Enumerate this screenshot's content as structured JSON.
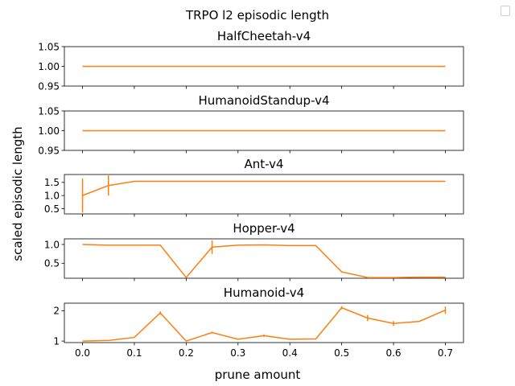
{
  "figure": {
    "suptitle": "TRPO l2 episodic length",
    "ylabel": "scaled episodic length",
    "xlabel": "prune amount",
    "line_color": "#ff7f0e",
    "err_color": "#ff7f0e",
    "legend": "empty legend box at top-right"
  },
  "chart_data": [
    {
      "type": "line",
      "title": "HalfCheetah-v4",
      "x": [
        0.0,
        0.05,
        0.1,
        0.15,
        0.2,
        0.25,
        0.3,
        0.35,
        0.4,
        0.45,
        0.5,
        0.55,
        0.6,
        0.65,
        0.7
      ],
      "series": [
        {
          "values": [
            1,
            1,
            1,
            1,
            1,
            1,
            1,
            1,
            1,
            1,
            1,
            1,
            1,
            1,
            1
          ],
          "err": [
            0,
            0,
            0,
            0,
            0,
            0,
            0,
            0,
            0,
            0,
            0,
            0,
            0,
            0,
            0
          ]
        }
      ],
      "ylim": [
        0.95,
        1.05
      ],
      "yticks": [
        0.95,
        1.0,
        1.05
      ],
      "ytick_labels": [
        "0.95",
        "1.00",
        "1.05"
      ],
      "xlim": [
        -0.035,
        0.735
      ]
    },
    {
      "type": "line",
      "title": "HumanoidStandup-v4",
      "x": [
        0.0,
        0.05,
        0.1,
        0.15,
        0.2,
        0.25,
        0.3,
        0.35,
        0.4,
        0.45,
        0.5,
        0.55,
        0.6,
        0.65,
        0.7
      ],
      "series": [
        {
          "values": [
            1,
            1,
            1,
            1,
            1,
            1,
            1,
            1,
            1,
            1,
            1,
            1,
            1,
            1,
            1
          ],
          "err": [
            0,
            0,
            0,
            0,
            0,
            0,
            0,
            0,
            0,
            0,
            0,
            0,
            0,
            0,
            0
          ]
        }
      ],
      "ylim": [
        0.95,
        1.05
      ],
      "yticks": [
        0.95,
        1.0,
        1.05
      ],
      "ytick_labels": [
        "0.95",
        "1.00",
        "1.05"
      ],
      "xlim": [
        -0.035,
        0.735
      ]
    },
    {
      "type": "line",
      "title": "Ant-v4",
      "x": [
        0.0,
        0.05,
        0.1,
        0.15,
        0.2,
        0.25,
        0.3,
        0.35,
        0.4,
        0.45,
        0.5,
        0.55,
        0.6,
        0.65,
        0.7
      ],
      "series": [
        {
          "values": [
            1.0,
            1.38,
            1.54,
            1.54,
            1.54,
            1.54,
            1.54,
            1.54,
            1.54,
            1.54,
            1.54,
            1.54,
            1.54,
            1.54,
            1.54
          ],
          "err": [
            0.65,
            0.38,
            0,
            0,
            0,
            0,
            0,
            0,
            0,
            0,
            0,
            0,
            0,
            0,
            0
          ]
        }
      ],
      "ylim": [
        0.3,
        1.8
      ],
      "yticks": [
        0.5,
        1.0,
        1.5
      ],
      "ytick_labels": [
        "0.5",
        "1.0",
        "1.5"
      ],
      "xlim": [
        -0.035,
        0.735
      ]
    },
    {
      "type": "line",
      "title": "Hopper-v4",
      "x": [
        0.0,
        0.05,
        0.1,
        0.15,
        0.2,
        0.25,
        0.3,
        0.35,
        0.4,
        0.45,
        0.5,
        0.55,
        0.6,
        0.65,
        0.7
      ],
      "series": [
        {
          "values": [
            1.0,
            0.98,
            0.98,
            0.98,
            0.12,
            0.93,
            0.98,
            0.99,
            0.97,
            0.97,
            0.27,
            0.12,
            0.12,
            0.13,
            0.13
          ],
          "err": [
            0,
            0,
            0,
            0,
            0,
            0.18,
            0,
            0,
            0,
            0,
            0,
            0,
            0,
            0,
            0
          ]
        }
      ],
      "ylim": [
        0.1,
        1.15
      ],
      "yticks": [
        0.5,
        1.0
      ],
      "ytick_labels": [
        "0.5",
        "1.0"
      ],
      "xlim": [
        -0.035,
        0.735
      ]
    },
    {
      "type": "line",
      "title": "Humanoid-v4",
      "x": [
        0.0,
        0.05,
        0.1,
        0.15,
        0.2,
        0.25,
        0.3,
        0.35,
        0.4,
        0.45,
        0.5,
        0.55,
        0.6,
        0.65,
        0.7
      ],
      "series": [
        {
          "values": [
            1.0,
            1.02,
            1.12,
            1.93,
            1.0,
            1.28,
            1.06,
            1.18,
            1.06,
            1.07,
            2.1,
            1.76,
            1.58,
            1.65,
            2.02
          ],
          "err": [
            0,
            0,
            0,
            0.05,
            0,
            0.03,
            0,
            0.04,
            0,
            0,
            0.05,
            0.1,
            0.08,
            0,
            0.12
          ]
        }
      ],
      "ylim": [
        0.95,
        2.25
      ],
      "yticks": [
        1,
        2
      ],
      "ytick_labels": [
        "1",
        "2"
      ],
      "xlim": [
        -0.035,
        0.735
      ],
      "xticks": [
        0.0,
        0.1,
        0.2,
        0.3,
        0.4,
        0.5,
        0.6,
        0.7
      ],
      "xtick_labels": [
        "0.0",
        "0.1",
        "0.2",
        "0.3",
        "0.4",
        "0.5",
        "0.6",
        "0.7"
      ]
    }
  ]
}
